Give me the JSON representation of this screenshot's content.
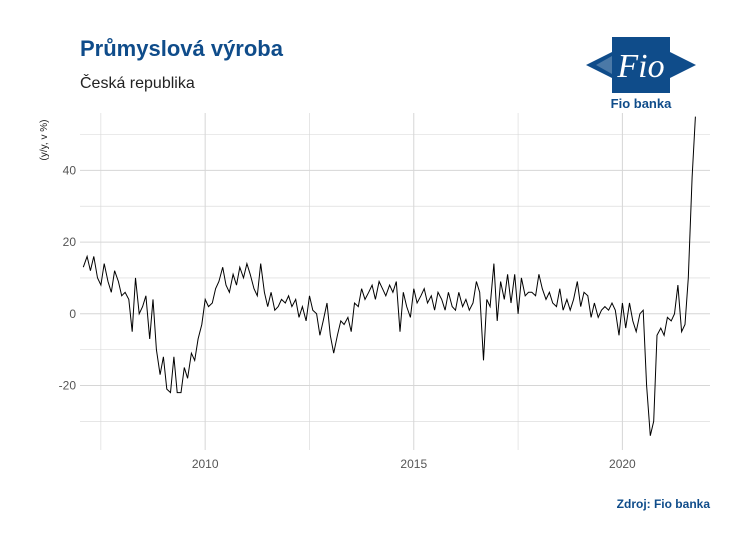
{
  "header": {
    "title": "Průmyslová výroba",
    "subtitle": "Česká republika"
  },
  "logo": {
    "mark": "Fio",
    "name": "Fio banka"
  },
  "source": "Zdroj: Fio banka",
  "colors": {
    "title": "#0f4c8a",
    "line": "#000000",
    "grid": "#d6d6d6"
  },
  "chart_data": {
    "type": "line",
    "title": "Průmyslová výroba",
    "ylabel": "(y/y, v %)",
    "xlabel": "",
    "grid": true,
    "legend": "none",
    "xlim": [
      2007.0,
      2022.1
    ],
    "ylim": [
      -38,
      56
    ],
    "x_ticks": [
      2010,
      2015,
      2020
    ],
    "y_ticks": [
      -20,
      0,
      20,
      40
    ],
    "series": [
      {
        "values": [
          [
            2007.08,
            13
          ],
          [
            2007.17,
            16
          ],
          [
            2007.25,
            12
          ],
          [
            2007.33,
            16
          ],
          [
            2007.42,
            10
          ],
          [
            2007.5,
            8
          ],
          [
            2007.58,
            14
          ],
          [
            2007.67,
            9
          ],
          [
            2007.75,
            6
          ],
          [
            2007.83,
            12
          ],
          [
            2007.92,
            9
          ],
          [
            2008.0,
            5
          ],
          [
            2008.08,
            6
          ],
          [
            2008.17,
            4
          ],
          [
            2008.25,
            -5
          ],
          [
            2008.33,
            10
          ],
          [
            2008.42,
            0
          ],
          [
            2008.5,
            2
          ],
          [
            2008.58,
            5
          ],
          [
            2008.67,
            -7
          ],
          [
            2008.75,
            4
          ],
          [
            2008.83,
            -10
          ],
          [
            2008.92,
            -17
          ],
          [
            2009.0,
            -12
          ],
          [
            2009.08,
            -21
          ],
          [
            2009.17,
            -22
          ],
          [
            2009.25,
            -12
          ],
          [
            2009.33,
            -22
          ],
          [
            2009.42,
            -22
          ],
          [
            2009.5,
            -15
          ],
          [
            2009.58,
            -18
          ],
          [
            2009.67,
            -11
          ],
          [
            2009.75,
            -13
          ],
          [
            2009.83,
            -7
          ],
          [
            2009.92,
            -3
          ],
          [
            2010.0,
            4
          ],
          [
            2010.08,
            2
          ],
          [
            2010.17,
            3
          ],
          [
            2010.25,
            7
          ],
          [
            2010.33,
            9
          ],
          [
            2010.42,
            13
          ],
          [
            2010.5,
            8
          ],
          [
            2010.58,
            6
          ],
          [
            2010.67,
            11
          ],
          [
            2010.75,
            8
          ],
          [
            2010.83,
            13
          ],
          [
            2010.92,
            10
          ],
          [
            2011.0,
            14
          ],
          [
            2011.08,
            11
          ],
          [
            2011.17,
            7
          ],
          [
            2011.25,
            5
          ],
          [
            2011.33,
            14
          ],
          [
            2011.42,
            6
          ],
          [
            2011.5,
            2
          ],
          [
            2011.58,
            6
          ],
          [
            2011.67,
            1
          ],
          [
            2011.75,
            2
          ],
          [
            2011.83,
            4
          ],
          [
            2011.92,
            3
          ],
          [
            2012.0,
            5
          ],
          [
            2012.08,
            2
          ],
          [
            2012.17,
            4
          ],
          [
            2012.25,
            -1
          ],
          [
            2012.33,
            2
          ],
          [
            2012.42,
            -2
          ],
          [
            2012.5,
            5
          ],
          [
            2012.58,
            1
          ],
          [
            2012.67,
            0
          ],
          [
            2012.75,
            -6
          ],
          [
            2012.83,
            -2
          ],
          [
            2012.92,
            3
          ],
          [
            2013.0,
            -6
          ],
          [
            2013.08,
            -11
          ],
          [
            2013.17,
            -6
          ],
          [
            2013.25,
            -2
          ],
          [
            2013.33,
            -3
          ],
          [
            2013.42,
            -1
          ],
          [
            2013.5,
            -5
          ],
          [
            2013.58,
            3
          ],
          [
            2013.67,
            2
          ],
          [
            2013.75,
            7
          ],
          [
            2013.83,
            4
          ],
          [
            2013.92,
            6
          ],
          [
            2014.0,
            8
          ],
          [
            2014.08,
            4
          ],
          [
            2014.17,
            9
          ],
          [
            2014.25,
            7
          ],
          [
            2014.33,
            5
          ],
          [
            2014.42,
            8
          ],
          [
            2014.5,
            6
          ],
          [
            2014.58,
            9
          ],
          [
            2014.67,
            -5
          ],
          [
            2014.75,
            6
          ],
          [
            2014.83,
            2
          ],
          [
            2014.92,
            -1
          ],
          [
            2015.0,
            7
          ],
          [
            2015.08,
            3
          ],
          [
            2015.17,
            5
          ],
          [
            2015.25,
            7
          ],
          [
            2015.33,
            3
          ],
          [
            2015.42,
            5
          ],
          [
            2015.5,
            1
          ],
          [
            2015.58,
            6
          ],
          [
            2015.67,
            4
          ],
          [
            2015.75,
            1
          ],
          [
            2015.83,
            6
          ],
          [
            2015.92,
            2
          ],
          [
            2016.0,
            1
          ],
          [
            2016.08,
            6
          ],
          [
            2016.17,
            2
          ],
          [
            2016.25,
            4
          ],
          [
            2016.33,
            1
          ],
          [
            2016.42,
            3
          ],
          [
            2016.5,
            9
          ],
          [
            2016.58,
            6
          ],
          [
            2016.67,
            -13
          ],
          [
            2016.75,
            4
          ],
          [
            2016.83,
            2
          ],
          [
            2016.92,
            14
          ],
          [
            2017.0,
            -2
          ],
          [
            2017.08,
            9
          ],
          [
            2017.17,
            4
          ],
          [
            2017.25,
            11
          ],
          [
            2017.33,
            3
          ],
          [
            2017.42,
            11
          ],
          [
            2017.5,
            0
          ],
          [
            2017.58,
            10
          ],
          [
            2017.67,
            5
          ],
          [
            2017.75,
            6
          ],
          [
            2017.83,
            6
          ],
          [
            2017.92,
            5
          ],
          [
            2018.0,
            11
          ],
          [
            2018.08,
            7
          ],
          [
            2018.17,
            4
          ],
          [
            2018.25,
            6
          ],
          [
            2018.33,
            3
          ],
          [
            2018.42,
            2
          ],
          [
            2018.5,
            7
          ],
          [
            2018.58,
            1
          ],
          [
            2018.67,
            4
          ],
          [
            2018.75,
            1
          ],
          [
            2018.83,
            4
          ],
          [
            2018.92,
            9
          ],
          [
            2019.0,
            2
          ],
          [
            2019.08,
            6
          ],
          [
            2019.17,
            5
          ],
          [
            2019.25,
            -1
          ],
          [
            2019.33,
            3
          ],
          [
            2019.42,
            -1
          ],
          [
            2019.5,
            1
          ],
          [
            2019.58,
            2
          ],
          [
            2019.67,
            1
          ],
          [
            2019.75,
            3
          ],
          [
            2019.83,
            1
          ],
          [
            2019.92,
            -6
          ],
          [
            2020.0,
            3
          ],
          [
            2020.08,
            -4
          ],
          [
            2020.17,
            3
          ],
          [
            2020.25,
            -2
          ],
          [
            2020.33,
            -5
          ],
          [
            2020.42,
            0
          ],
          [
            2020.5,
            1
          ],
          [
            2020.58,
            -20
          ],
          [
            2020.67,
            -34
          ],
          [
            2020.75,
            -30
          ],
          [
            2020.83,
            -6
          ],
          [
            2020.92,
            -4
          ],
          [
            2021.0,
            -6
          ],
          [
            2021.08,
            -1
          ],
          [
            2021.17,
            -2
          ],
          [
            2021.25,
            0
          ],
          [
            2021.33,
            8
          ],
          [
            2021.42,
            -5
          ],
          [
            2021.5,
            -3
          ],
          [
            2021.58,
            10
          ],
          [
            2021.67,
            38
          ],
          [
            2021.75,
            55
          ]
        ]
      }
    ]
  }
}
